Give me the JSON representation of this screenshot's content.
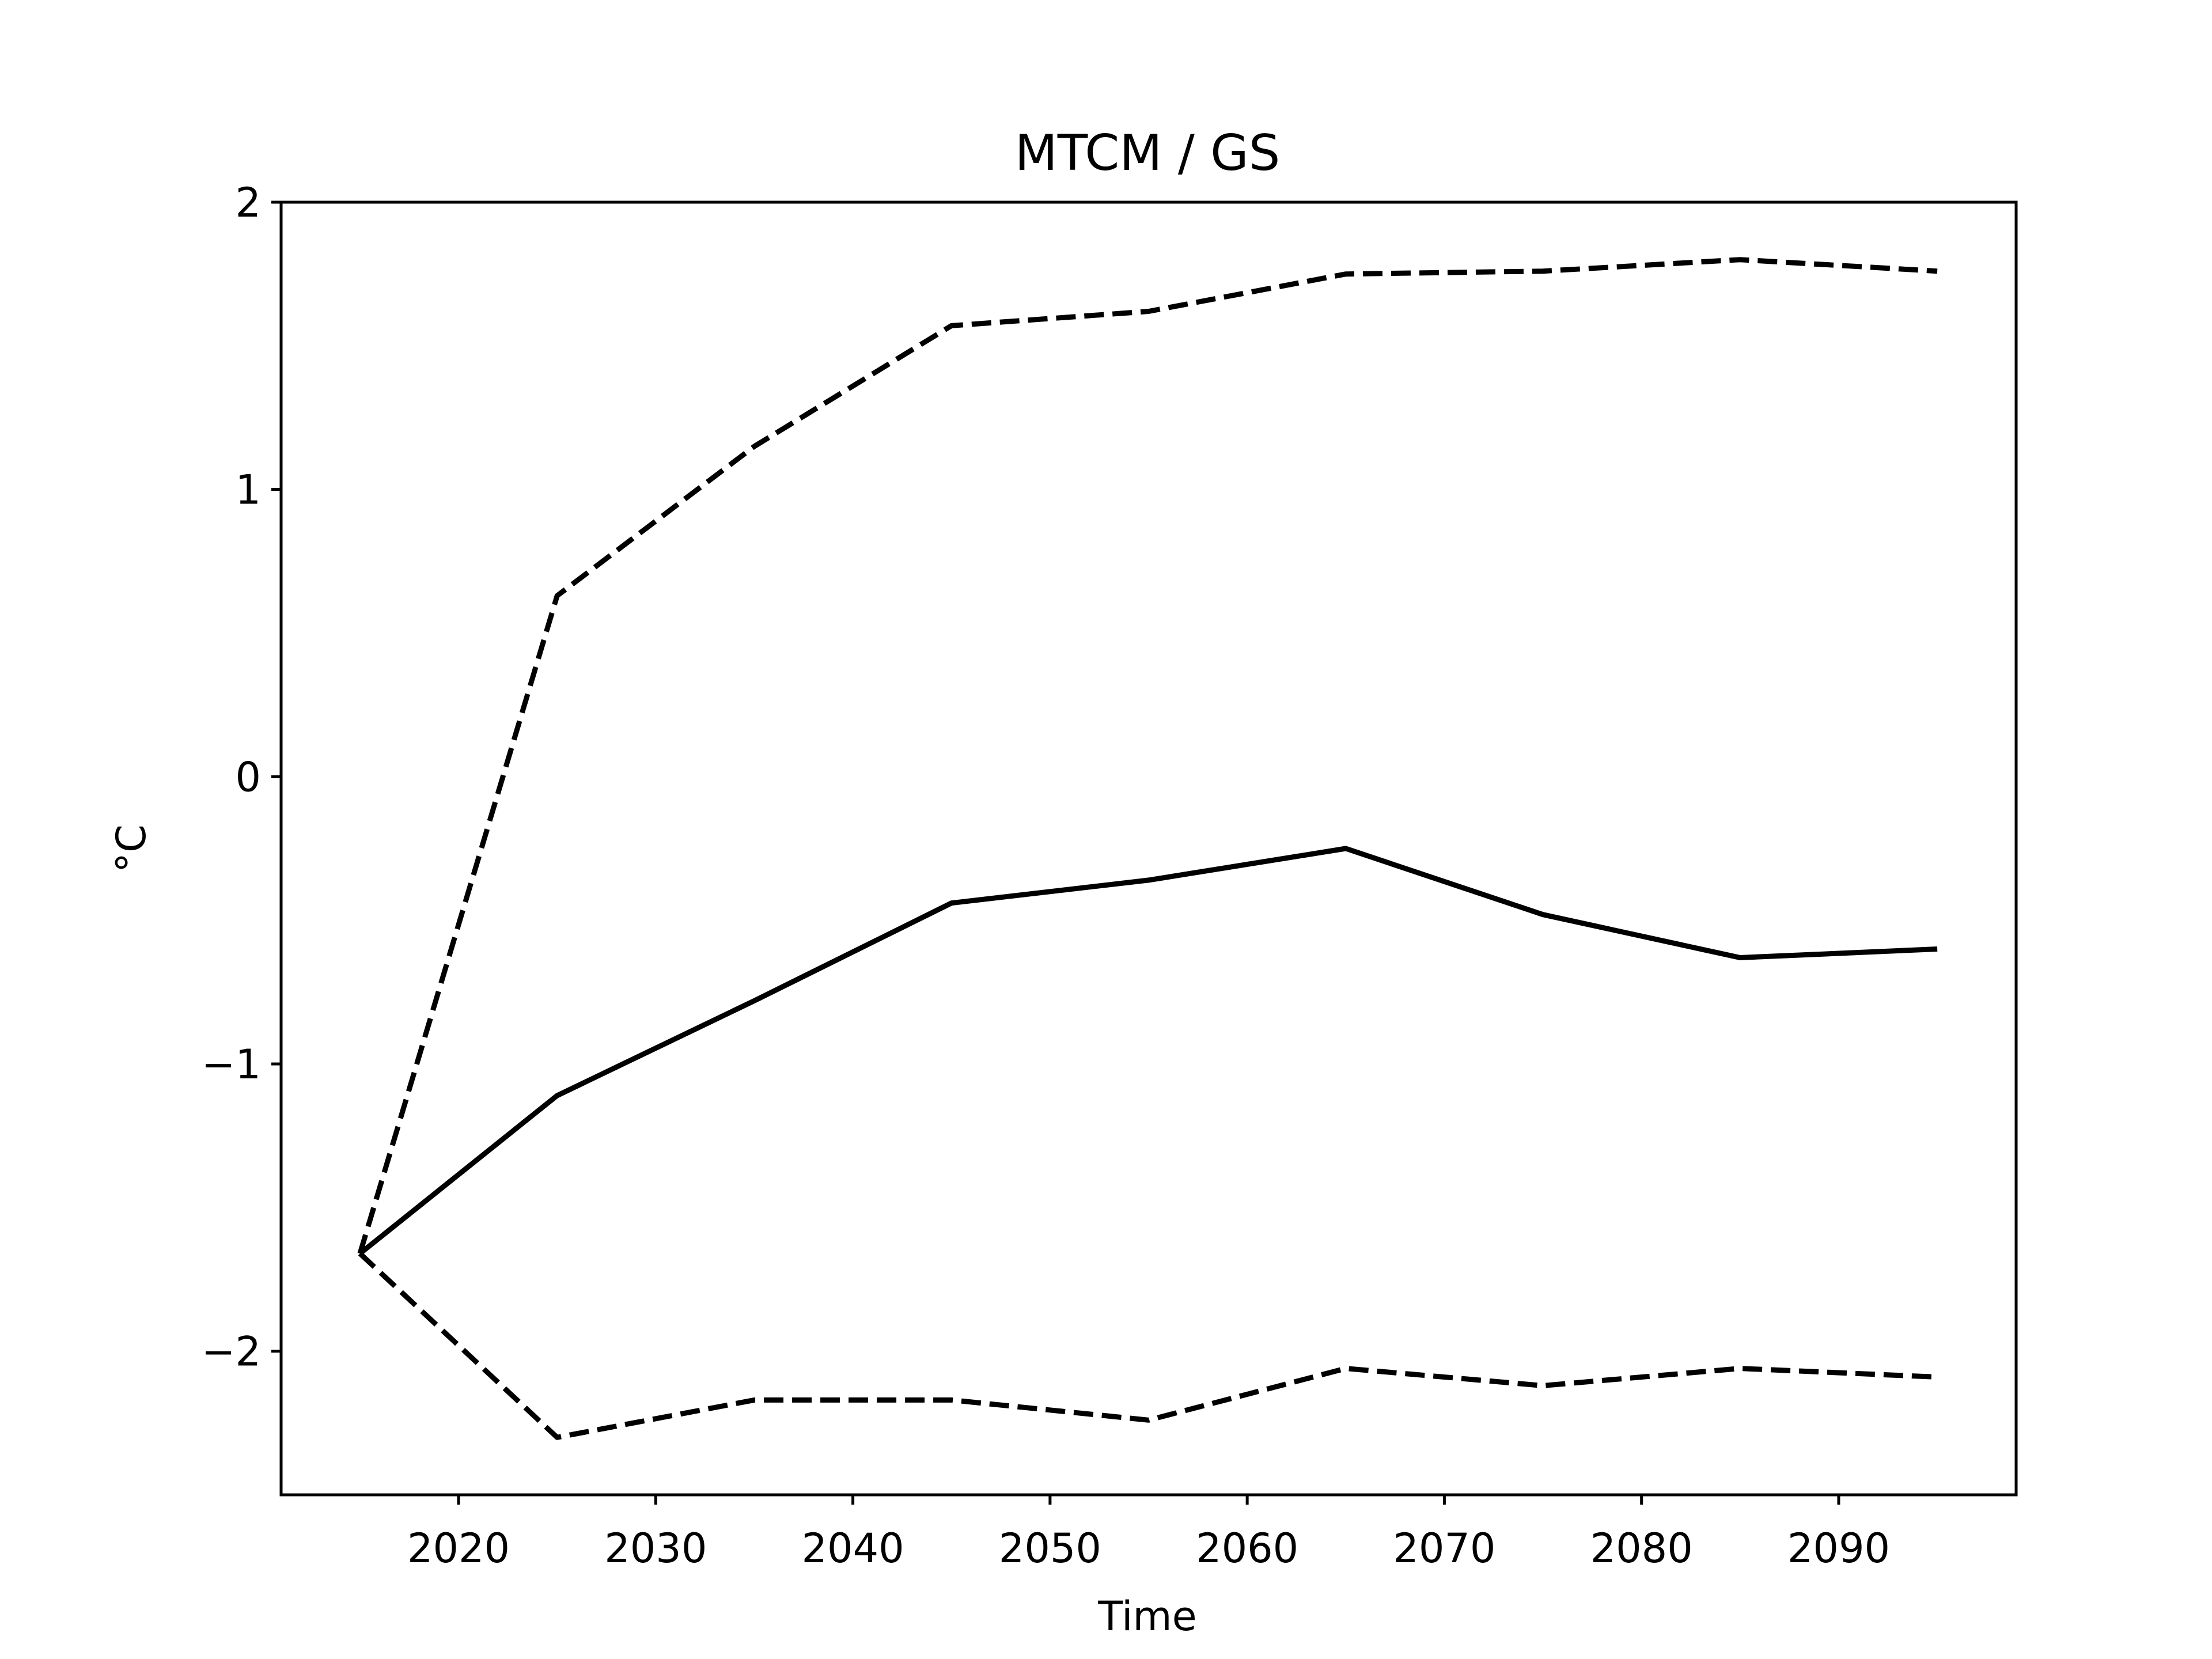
{
  "chart_data": {
    "type": "line",
    "title": "MTCM / GS",
    "xlabel": "Time",
    "ylabel": "°C",
    "xlim": [
      2011,
      2099
    ],
    "ylim": [
      -2.5,
      2.0
    ],
    "xticks": [
      2020,
      2030,
      2040,
      2050,
      2060,
      2070,
      2080,
      2090
    ],
    "yticks": [
      -2,
      -1,
      0,
      1,
      2
    ],
    "ytick_labels": [
      "−2",
      "−1",
      "0",
      "1",
      "2"
    ],
    "grid": false,
    "line_color": "#000000",
    "x": [
      2015,
      2025,
      2035,
      2045,
      2055,
      2065,
      2075,
      2085,
      2095
    ],
    "series": [
      {
        "style": "solid",
        "values": [
          -1.66,
          -1.11,
          -0.78,
          -0.44,
          -0.36,
          -0.25,
          -0.48,
          -0.63,
          -0.6
        ]
      },
      {
        "style": "dashed",
        "values": [
          -1.66,
          0.63,
          1.15,
          1.57,
          1.62,
          1.75,
          1.76,
          1.8,
          1.76
        ]
      },
      {
        "style": "dashed",
        "values": [
          -1.66,
          -2.3,
          -2.17,
          -2.17,
          -2.24,
          -2.06,
          -2.12,
          -2.06,
          -2.09
        ]
      }
    ]
  }
}
